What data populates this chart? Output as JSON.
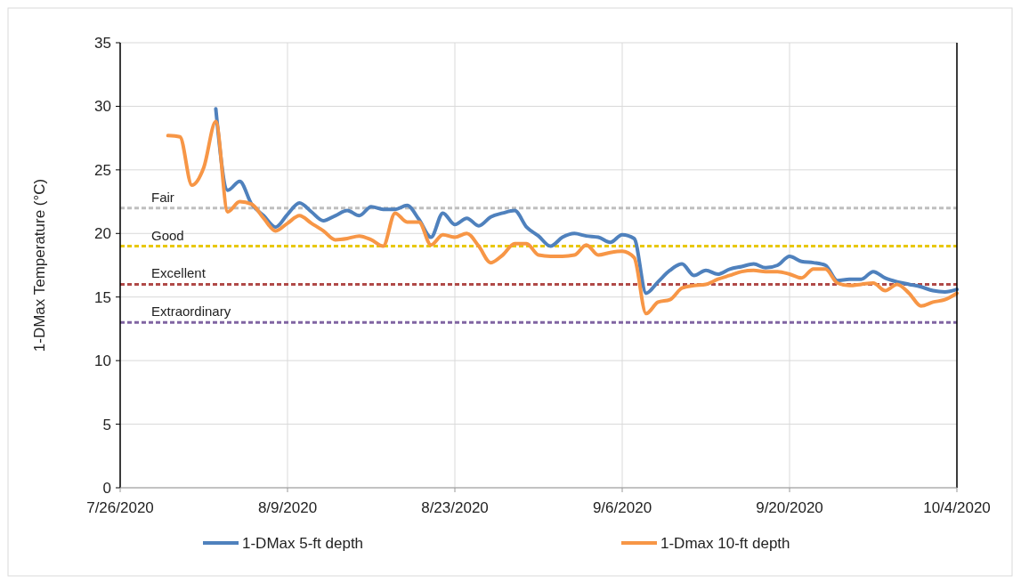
{
  "chart_data": {
    "type": "line",
    "ylabel": "1-DMax Temperature (°C)",
    "xlim": [
      "2020-07-26",
      "2020-10-04"
    ],
    "xticks": [
      {
        "value": "2020-07-26",
        "label": "7/26/2020"
      },
      {
        "value": "2020-08-09",
        "label": "8/9/2020"
      },
      {
        "value": "2020-08-23",
        "label": "8/23/2020"
      },
      {
        "value": "2020-09-06",
        "label": "9/6/2020"
      },
      {
        "value": "2020-09-20",
        "label": "9/20/2020"
      },
      {
        "value": "2020-10-04",
        "label": "10/4/2020"
      }
    ],
    "ylim": [
      0,
      35
    ],
    "yticks": [
      0,
      5,
      10,
      15,
      20,
      25,
      30,
      35
    ],
    "grid": true,
    "legend": "bottom",
    "line_style": "solid",
    "marker": "none",
    "x": [
      "2020-07-30",
      "2020-07-31",
      "2020-08-01",
      "2020-08-02",
      "2020-08-03",
      "2020-08-04",
      "2020-08-05",
      "2020-08-06",
      "2020-08-07",
      "2020-08-08",
      "2020-08-09",
      "2020-08-10",
      "2020-08-11",
      "2020-08-12",
      "2020-08-13",
      "2020-08-14",
      "2020-08-15",
      "2020-08-16",
      "2020-08-17",
      "2020-08-18",
      "2020-08-19",
      "2020-08-20",
      "2020-08-21",
      "2020-08-22",
      "2020-08-23",
      "2020-08-24",
      "2020-08-25",
      "2020-08-26",
      "2020-08-27",
      "2020-08-28",
      "2020-08-29",
      "2020-08-30",
      "2020-08-31",
      "2020-09-01",
      "2020-09-02",
      "2020-09-03",
      "2020-09-04",
      "2020-09-05",
      "2020-09-06",
      "2020-09-07",
      "2020-09-08",
      "2020-09-09",
      "2020-09-10",
      "2020-09-11",
      "2020-09-12",
      "2020-09-13",
      "2020-09-14",
      "2020-09-15",
      "2020-09-16",
      "2020-09-17",
      "2020-09-18",
      "2020-09-19",
      "2020-09-20",
      "2020-09-21",
      "2020-09-22",
      "2020-09-23",
      "2020-09-24",
      "2020-09-25",
      "2020-09-26",
      "2020-09-27",
      "2020-09-28",
      "2020-09-29",
      "2020-09-30",
      "2020-10-01",
      "2020-10-02",
      "2020-10-03",
      "2020-10-04"
    ],
    "series": [
      {
        "name": "1-DMax 5-ft depth",
        "color": "#4f81bd",
        "values": [
          null,
          null,
          null,
          null,
          29.8,
          23.4,
          24.1,
          22.3,
          21.4,
          20.5,
          21.5,
          22.4,
          21.7,
          21.0,
          21.4,
          21.8,
          21.4,
          22.1,
          21.9,
          21.9,
          22.2,
          21.1,
          19.7,
          21.6,
          20.7,
          21.2,
          20.6,
          21.3,
          21.6,
          21.8,
          20.5,
          19.8,
          19.0,
          19.7,
          20.0,
          19.8,
          19.7,
          19.3,
          19.9,
          19.6,
          15.3,
          16.2,
          17.1,
          17.6,
          16.7,
          17.1,
          16.8,
          17.2,
          17.4,
          17.6,
          17.3,
          17.5,
          18.2,
          17.8,
          17.7,
          17.5,
          16.3,
          16.4,
          16.4,
          17.0,
          16.5,
          16.2,
          16.0,
          15.8,
          15.5,
          15.4,
          15.6
        ]
      },
      {
        "name": "1-Dmax 10-ft depth",
        "color": "#f79646",
        "values": [
          27.7,
          27.6,
          23.8,
          25.2,
          28.8,
          21.7,
          22.5,
          22.3,
          21.2,
          20.2,
          20.8,
          21.4,
          20.8,
          20.2,
          19.5,
          19.6,
          19.8,
          19.5,
          19.0,
          21.6,
          20.9,
          20.9,
          19.1,
          19.9,
          19.7,
          20.0,
          19.0,
          17.7,
          18.3,
          19.2,
          19.2,
          18.3,
          18.2,
          18.2,
          18.3,
          19.1,
          18.3,
          18.5,
          18.6,
          18.1,
          13.7,
          14.6,
          14.8,
          15.7,
          15.9,
          16.0,
          16.4,
          16.7,
          17.0,
          17.1,
          17.0,
          17.0,
          16.8,
          16.5,
          17.2,
          17.2,
          16.1,
          15.9,
          16.0,
          16.1,
          15.5,
          16.0,
          15.3,
          14.3,
          14.6,
          14.8,
          15.3
        ]
      }
    ],
    "ref_lines": [
      {
        "axis": "y",
        "value": 22,
        "label": "Fair",
        "color": "#bfbfbf",
        "line_style": "dashed"
      },
      {
        "axis": "y",
        "value": 19,
        "label": "Good",
        "color": "#e8c800",
        "line_style": "dashed"
      },
      {
        "axis": "y",
        "value": 16,
        "label": "Excellent",
        "color": "#b04a48",
        "line_style": "dashed"
      },
      {
        "axis": "y",
        "value": 13,
        "label": "Extraordinary",
        "color": "#8064a2",
        "line_style": "dashed"
      }
    ]
  }
}
